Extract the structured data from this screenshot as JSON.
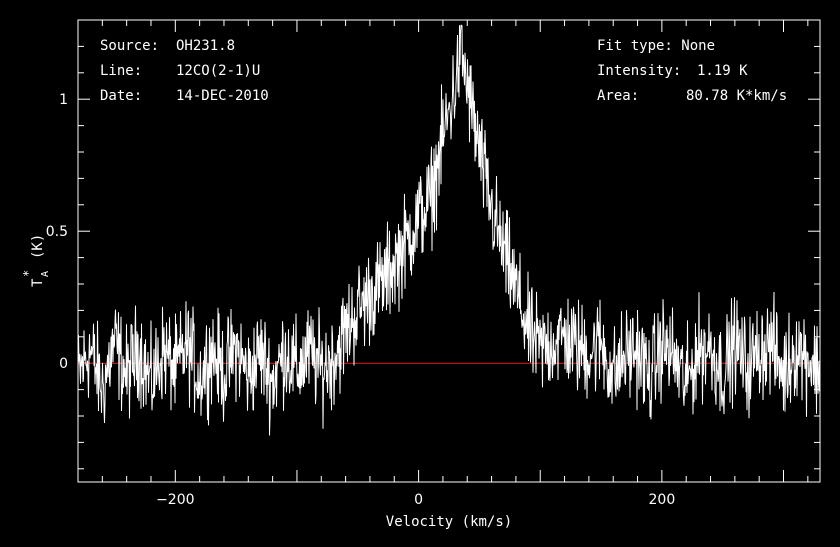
{
  "header": {
    "source_label": "Source:",
    "source_value": "OH231.8",
    "line_label": "Line:",
    "line_value": "12CO(2-1)U",
    "date_label": "Date:",
    "date_value": "14-DEC-2010",
    "fit_type": "Fit type: None",
    "intensity_label": "Intensity:",
    "intensity_value": "1.19 K",
    "area_label": "Area:",
    "area_value": "80.78 K*km/s"
  },
  "colors": {
    "background": "#000000",
    "spectrum": "#ffffff",
    "baseline": "#e02020",
    "axes": "#ffffff"
  },
  "chart_data": {
    "type": "line",
    "title": "",
    "xlabel": "Velocity (km/s)",
    "ylabel_main": "T",
    "ylabel_sub": "A",
    "ylabel_sup": "*",
    "ylabel_unit": "(K)",
    "xlim": [
      -280,
      330
    ],
    "ylim": [
      -0.45,
      1.3
    ],
    "x_ticks": [
      -200,
      0,
      200
    ],
    "x_tick_labels": [
      "−200",
      "0",
      "200"
    ],
    "y_ticks": [
      0,
      0.5,
      1
    ],
    "y_tick_labels": [
      "0",
      "0.5",
      "1"
    ],
    "baseline_y": 0,
    "grid": false,
    "series": [
      {
        "x": [
          -280,
          -270,
          -260,
          -250,
          -240,
          -230,
          -220,
          -210,
          -200,
          -190,
          -180,
          -170,
          -160,
          -150,
          -140,
          -130,
          -120,
          -110,
          -100,
          -90,
          -80,
          -70,
          -60,
          -50,
          -40,
          -30,
          -20,
          -10,
          0,
          10,
          20,
          30,
          35,
          40,
          50,
          60,
          70,
          80,
          90,
          100,
          110,
          120,
          130,
          140,
          150,
          160,
          170,
          180,
          190,
          200,
          210,
          220,
          230,
          240,
          250,
          260,
          270,
          280,
          290,
          300,
          310,
          320,
          330
        ],
        "y": [
          -0.05,
          0.05,
          -0.1,
          0.08,
          -0.05,
          0.06,
          -0.08,
          0.05,
          -0.03,
          0.07,
          -0.06,
          0.05,
          -0.04,
          0.06,
          -0.05,
          0.04,
          -0.07,
          0.05,
          -0.03,
          0.04,
          -0.02,
          0.02,
          0.12,
          0.2,
          0.26,
          0.3,
          0.38,
          0.46,
          0.55,
          0.62,
          0.85,
          1.05,
          1.19,
          1.05,
          0.8,
          0.58,
          0.42,
          0.28,
          0.12,
          0.05,
          0.08,
          0.1,
          0.06,
          0.04,
          0.08,
          -0.05,
          0.03,
          0.05,
          -0.06,
          0.07,
          0.02,
          -0.08,
          0.05,
          0.06,
          -0.04,
          0.08,
          -0.02,
          0.05,
          0.07,
          -0.04,
          0.06,
          0.02,
          -0.03
        ]
      }
    ]
  }
}
